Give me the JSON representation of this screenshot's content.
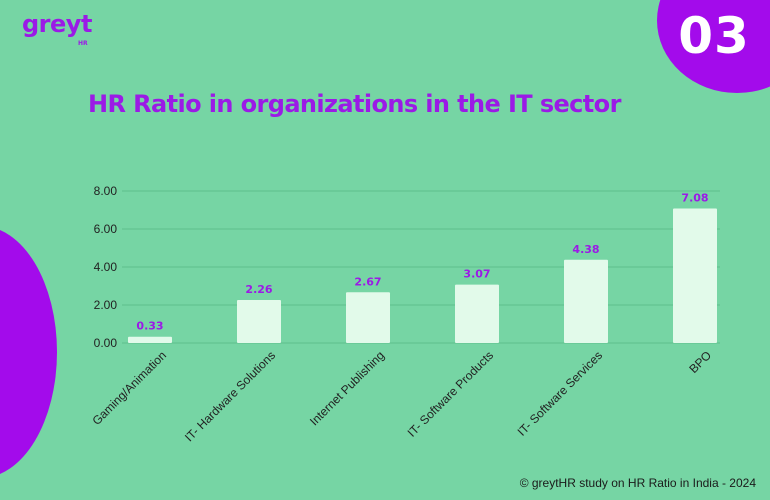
{
  "brand": {
    "logo_text": "greyt",
    "logo_sub": "HR"
  },
  "page_number": "03",
  "footer": "© greytHR study on HR Ratio in India - 2024",
  "colors": {
    "background": "#76D5A4",
    "accent": "#9B1AE6",
    "circle": "#A30BEB",
    "bar": "#E2FAEA",
    "axis_text": "#222222"
  },
  "chart_data": {
    "type": "bar",
    "title": "HR Ratio in organizations in the IT sector",
    "categories": [
      "Gaming/Animation",
      "IT- Hardware Solutions",
      "Internet Publishing",
      "IT- Software Products",
      "IT- Software Services",
      "BPO"
    ],
    "values": [
      0.33,
      2.26,
      2.67,
      3.07,
      4.38,
      7.08
    ],
    "value_labels": [
      "0.33",
      "2.26",
      "2.67",
      "3.07",
      "4.38",
      "7.08"
    ],
    "yticks": [
      "0.00",
      "2.00",
      "4.00",
      "6.00",
      "8.00"
    ],
    "ytick_values": [
      0,
      2,
      4,
      6,
      8
    ],
    "ylim": [
      0,
      8
    ],
    "grid": true,
    "legend": "none"
  }
}
